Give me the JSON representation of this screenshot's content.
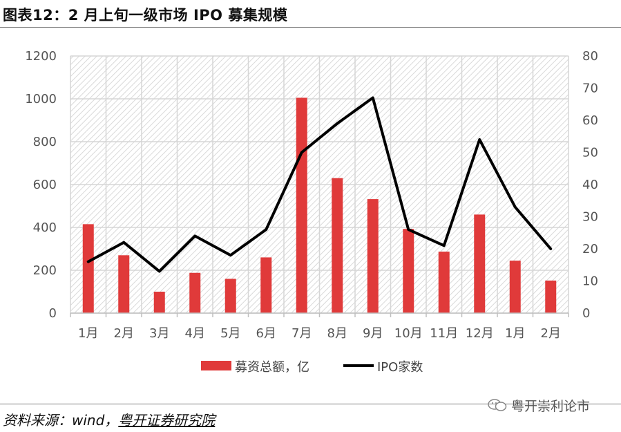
{
  "header": {
    "title": "图表12：2 月上旬一级市场 IPO 募集规模"
  },
  "footer": {
    "source_prefix": "资料来源：wind，",
    "source_org": "粤开证券研究院"
  },
  "watermark": {
    "text": "粤开崇利论市",
    "icon": "wechat-icon"
  },
  "chart_data": {
    "type": "bar",
    "categories": [
      "1月",
      "2月",
      "3月",
      "4月",
      "5月",
      "6月",
      "7月",
      "8月",
      "9月",
      "10月",
      "11月",
      "12月",
      "1月",
      "2月"
    ],
    "series": [
      {
        "name": "募资总额，亿",
        "type": "bar",
        "axis": "left",
        "color": "#e03a3a",
        "values": [
          415,
          270,
          100,
          188,
          160,
          260,
          1005,
          630,
          532,
          393,
          287,
          460,
          245,
          152
        ]
      },
      {
        "name": "IPO家数",
        "type": "line",
        "axis": "right",
        "color": "#000000",
        "values": [
          16,
          22,
          13,
          24,
          18,
          26,
          50,
          59,
          67,
          26,
          21,
          54,
          33,
          20
        ]
      }
    ],
    "y_left": {
      "min": 0,
      "max": 1200,
      "ticks": [
        "0",
        "200",
        "400",
        "600",
        "800",
        "1000",
        "1200"
      ]
    },
    "y_right": {
      "min": 0,
      "max": 80,
      "ticks": [
        "0",
        "10",
        "20",
        "30",
        "40",
        "50",
        "60",
        "70",
        "80"
      ]
    },
    "grid": true,
    "plot_background": "hatched",
    "legend_position": "bottom"
  }
}
